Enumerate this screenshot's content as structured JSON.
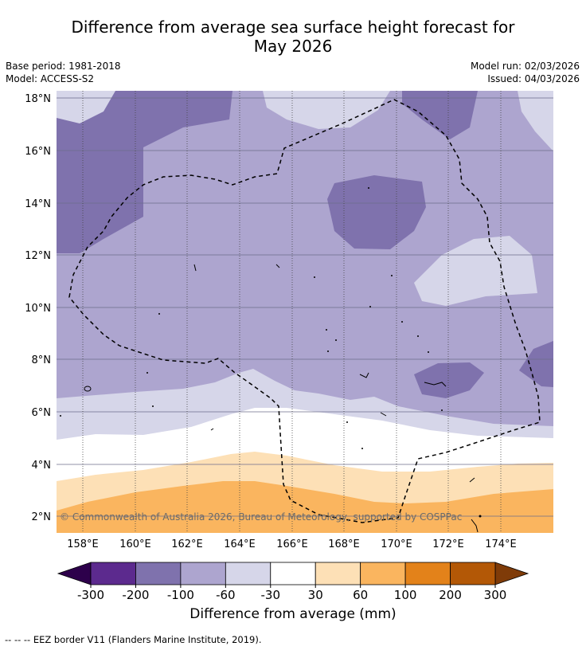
{
  "header": {
    "title_line1": "Difference from average sea surface height forecast for",
    "title_line2": "May 2026",
    "base_period": "Base period: 1981-2018",
    "model": "Model: ACCESS-S2",
    "model_run": "Model run: 02/03/2026",
    "issued": "Issued: 04/03/2026"
  },
  "map": {
    "lon_labels": [
      "158°E",
      "160°E",
      "162°E",
      "164°E",
      "166°E",
      "168°E",
      "170°E",
      "172°E",
      "174°E"
    ],
    "lat_labels": [
      "18°N",
      "16°N",
      "14°N",
      "12°N",
      "10°N",
      "8°N",
      "6°N",
      "4°N",
      "2°N"
    ],
    "lon_range": [
      157,
      176
    ],
    "lat_range": [
      1.4,
      18.3
    ],
    "copyright": "© Commonwealth of Australia 2026, Bureau of Meteorology, supported by COSPPac"
  },
  "colorbar": {
    "ticks": [
      "-300",
      "-200",
      "-100",
      "-60",
      "-30",
      "30",
      "60",
      "100",
      "200",
      "300"
    ],
    "colors": [
      "#5c2a8e",
      "#7f72ad",
      "#ada5cf",
      "#d6d6e9",
      "#ffffff",
      "#fde0b6",
      "#fab55f",
      "#e3821a",
      "#b35806"
    ],
    "under_color": "#2d004b",
    "over_color": "#7f3b08",
    "label": "Difference from average (mm)"
  },
  "footnote": "-- -- -- EEZ border V11 (Flanders Marine Institute, 2019)."
}
